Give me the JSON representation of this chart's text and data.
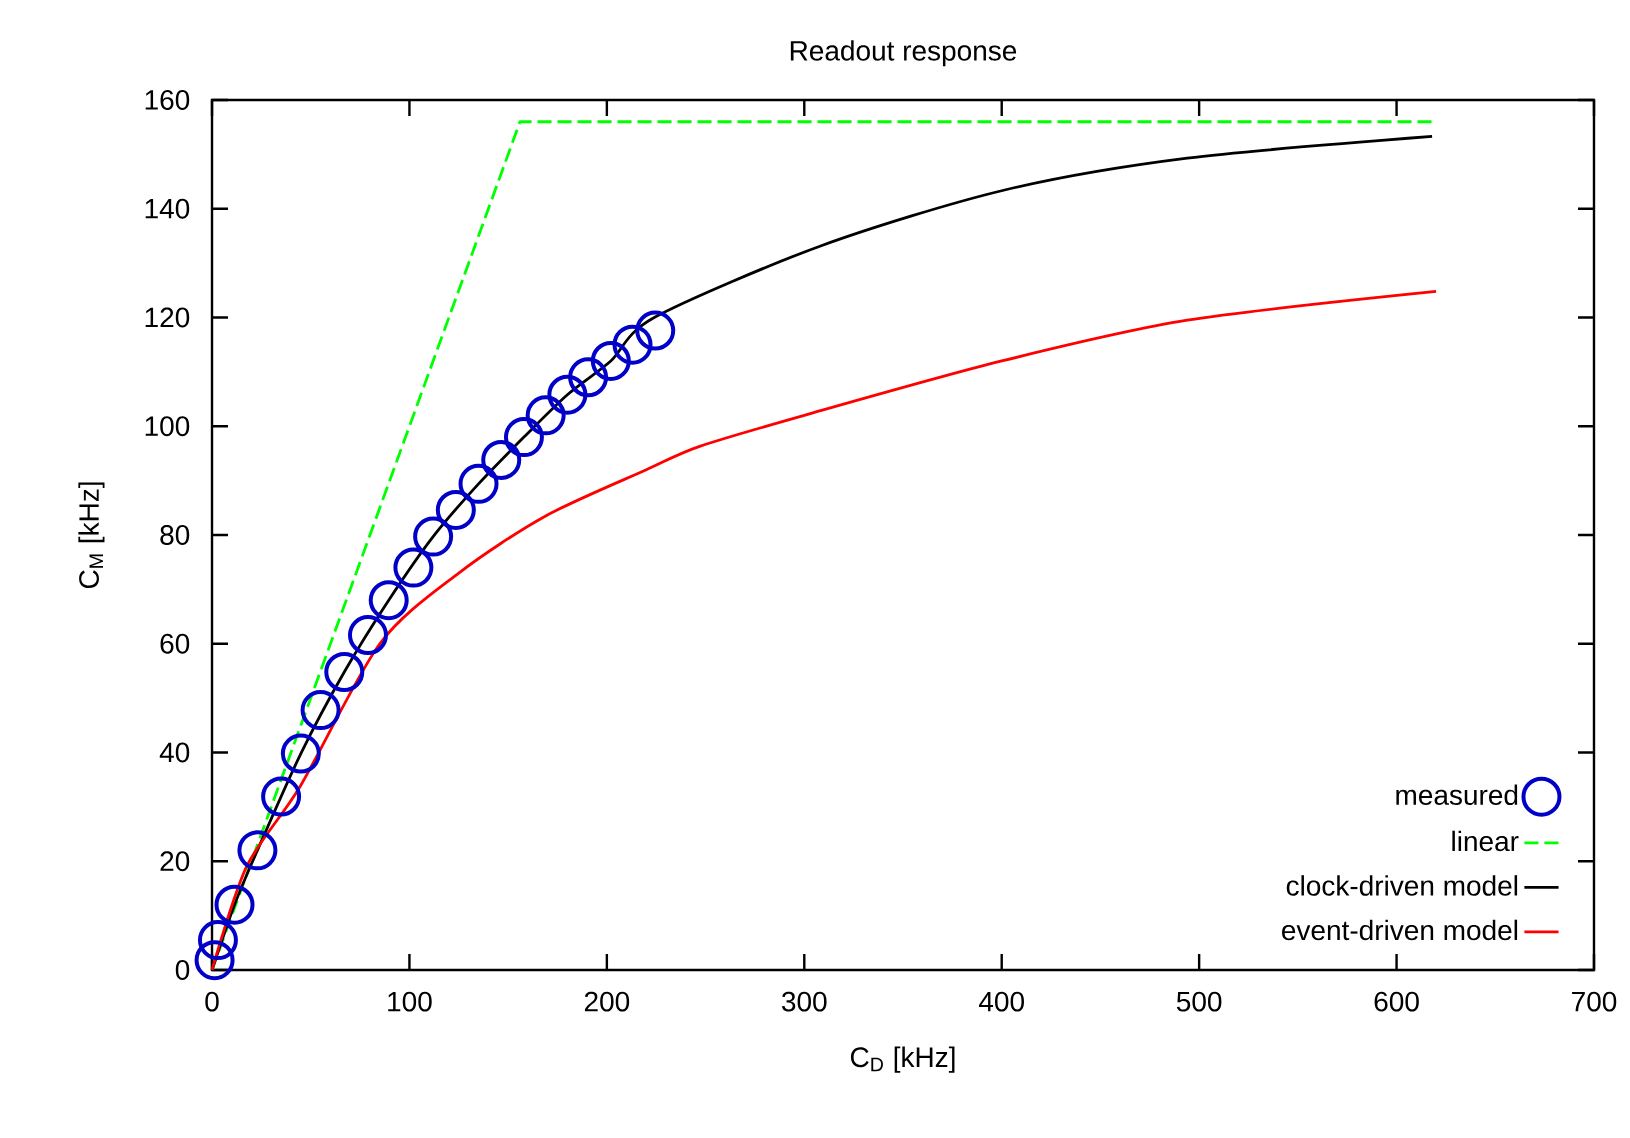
{
  "chart_data": {
    "type": "line",
    "title": "Readout response",
    "xlabel": "C$_{D}$ [kHz]",
    "ylabel": "C$_{M}$ [kHz]",
    "xlim": [
      0,
      700
    ],
    "ylim": [
      0,
      160
    ],
    "xticks": [
      0,
      100,
      200,
      300,
      400,
      500,
      600,
      700
    ],
    "yticks": [
      0,
      20,
      40,
      60,
      80,
      100,
      120,
      140,
      160
    ],
    "legend": "bottom right",
    "grid": false,
    "series": [
      {
        "name": "measured",
        "type": "scatter",
        "marker": "circle",
        "color": "#0000c8",
        "x": [
          1.3,
          3,
          11.4,
          23,
          35,
          45,
          55,
          67,
          79,
          89.5,
          102,
          112,
          123.5,
          135,
          146.5,
          158,
          169,
          180,
          190.5,
          202,
          213,
          224.5
        ],
        "values": [
          1.8,
          5.5,
          12,
          22,
          31.9,
          39.8,
          47.8,
          54.8,
          61.6,
          68,
          74,
          79.7,
          84.6,
          89.4,
          93.8,
          98,
          102,
          105.8,
          109,
          112,
          115,
          117.6
        ]
      },
      {
        "name": "linear",
        "line_style": "dashed",
        "color": "#00ff00",
        "x": [
          0,
          156,
          620
        ],
        "values": [
          0,
          156,
          156
        ]
      },
      {
        "name": "clock-driven model",
        "line_style": "solid",
        "color": "#000000",
        "x": [
          0,
          11.4,
          23,
          45,
          67,
          89.5,
          112,
          135,
          158,
          180,
          202,
          224,
          308.6,
          401,
          494,
          618
        ],
        "values": [
          0,
          12,
          22,
          39.8,
          54.8,
          68,
          79.7,
          89.4,
          98,
          105.8,
          112,
          120,
          133.2,
          143.4,
          149.3,
          153.3
        ]
      },
      {
        "name": "event-driven model",
        "line_style": "solid",
        "color": "#ff0000",
        "x": [
          0,
          17.5,
          44.7,
          85,
          125,
          169,
          220,
          247,
          300,
          400,
          494,
          620
        ],
        "values": [
          0,
          19,
          33.8,
          60,
          73,
          83.5,
          92,
          96.3,
          102,
          112,
          119.5,
          124.8
        ]
      }
    ]
  }
}
